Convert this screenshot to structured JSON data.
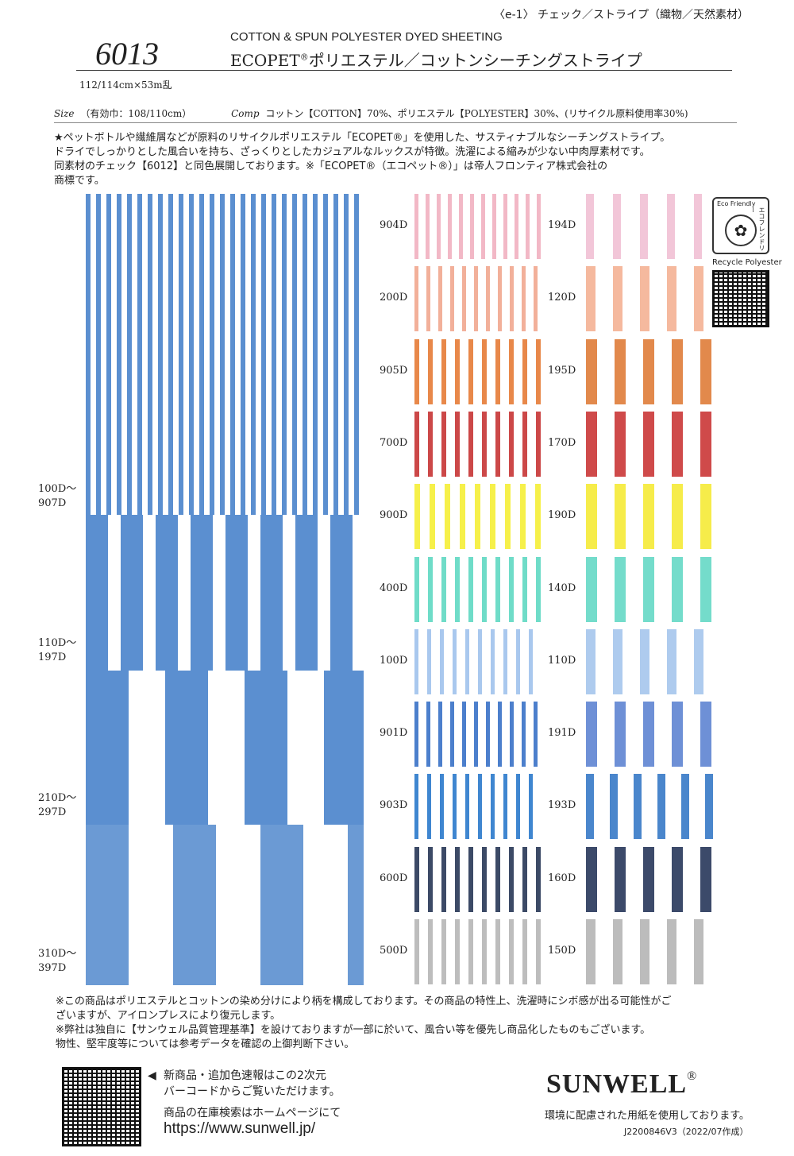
{
  "header": {
    "category": "〈e-1〉 チェック／ストライプ（織物／天然素材）",
    "code": "6013",
    "subtitle_en": "COTTON & SPUN POLYESTER DYED SHEETING",
    "title_main": "ECOPET",
    "title_reg": "®",
    "title_rest": "ポリエステル／コットンシーチングストライプ"
  },
  "specs": {
    "size_value": "112/114cm×53m乱",
    "size_label": "Size",
    "size_width": "（有効巾：108/110cm）",
    "comp_label": "Comp",
    "comp_value": "コットン【COTTON】70%、ポリエステル【POLYESTER】30%、(リサイクル原料使用率30%)"
  },
  "description": [
    "★ペットボトルや繊維屑などが原料のリサイクルポリエステル「ECOPET®」を使用した、サスティナブルなシーチングストライプ。",
    "ドライでしっかりとした風合いを持ち、ざっくりとしたカジュアルなルックスが特徴。洗濯による縮みが少ない中肉厚素材です。",
    "同素材のチェック【6012】と同色展開しております。※「ECOPET®（エコペット®）」は帝人フロンティア株式会社の",
    "商標です。"
  ],
  "large_swatch_ranges": [
    {
      "line1": "100D～",
      "line2": "907D"
    },
    {
      "line1": "110D～",
      "line2": "197D"
    },
    {
      "line1": "210D～",
      "line2": "297D"
    },
    {
      "line1": "310D～",
      "line2": "397D"
    }
  ],
  "colors_left": [
    {
      "code": "904D",
      "color": "#f2b8c6",
      "stripe": 5,
      "gap": 9
    },
    {
      "code": "200D",
      "color": "#f2b09a",
      "stripe": 5,
      "gap": 10
    },
    {
      "code": "905D",
      "color": "#e8884a",
      "stripe": 6,
      "gap": 11
    },
    {
      "code": "700D",
      "color": "#cc4848",
      "stripe": 6,
      "gap": 11
    },
    {
      "code": "900D",
      "color": "#f6f04a",
      "stripe": 7,
      "gap": 12
    },
    {
      "code": "400D",
      "color": "#6fdcc8",
      "stripe": 6,
      "gap": 11
    },
    {
      "code": "100D",
      "color": "#a9c8ee",
      "stripe": 5,
      "gap": 11
    },
    {
      "code": "901D",
      "color": "#4c7fcc",
      "stripe": 5,
      "gap": 10
    },
    {
      "code": "903D",
      "color": "#3f86d0",
      "stripe": 5,
      "gap": 11
    },
    {
      "code": "600D",
      "color": "#3c4a66",
      "stripe": 6,
      "gap": 11
    },
    {
      "code": "500D",
      "color": "#bdbdbd",
      "stripe": 6,
      "gap": 11
    }
  ],
  "colors_right": [
    {
      "code": "194D",
      "color": "#f2c6d8",
      "stripe": 10,
      "gap": 24
    },
    {
      "code": "120D",
      "color": "#f5b99e",
      "stripe": 12,
      "gap": 22
    },
    {
      "code": "195D",
      "color": "#e2894c",
      "stripe": 14,
      "gap": 22
    },
    {
      "code": "170D",
      "color": "#cf4a4a",
      "stripe": 14,
      "gap": 22
    },
    {
      "code": "190D",
      "color": "#f6ec4a",
      "stripe": 14,
      "gap": 22
    },
    {
      "code": "140D",
      "color": "#74dccb",
      "stripe": 14,
      "gap": 22
    },
    {
      "code": "110D",
      "color": "#aecbee",
      "stripe": 12,
      "gap": 22
    },
    {
      "code": "191D",
      "color": "#6e90d6",
      "stripe": 14,
      "gap": 22
    },
    {
      "code": "193D",
      "color": "#4a86cc",
      "stripe": 10,
      "gap": 20
    },
    {
      "code": "160D",
      "color": "#3c4a6a",
      "stripe": 14,
      "gap": 22
    },
    {
      "code": "150D",
      "color": "#bcbcbc",
      "stripe": 12,
      "gap": 22
    }
  ],
  "eco": {
    "badge_head": "Eco Friendly",
    "badge_side": "エコフレンドリー",
    "recycle": "Recycle Polyester"
  },
  "notes": [
    "※この商品はポリエステルとコットンの染め分けにより柄を構成しております。その商品の特性上、洗濯時にシボ感が出る可能性がご",
    "ざいますが、アイロンプレスにより復元します。",
    "※弊社は独自に【サンウェル品質管理基準】を設けておりますが一部に於いて、風合い等を優先し商品化したものもございます。",
    "物性、堅牢度等については参考データを確認の上御判断下さい。"
  ],
  "footer": {
    "qr_line1": "新商品・追加色速報はこの2次元",
    "qr_line2": "バーコードからご覧いただけます。",
    "stock": "商品の在庫検索はホームページにて",
    "url": "https://www.sunwell.jp/",
    "logo": "SUNWELL",
    "logo_reg": "®",
    "eco_paper": "環境に配慮された用紙を使用しております。",
    "print_code": "J2200846V3（2022/07作成）"
  }
}
